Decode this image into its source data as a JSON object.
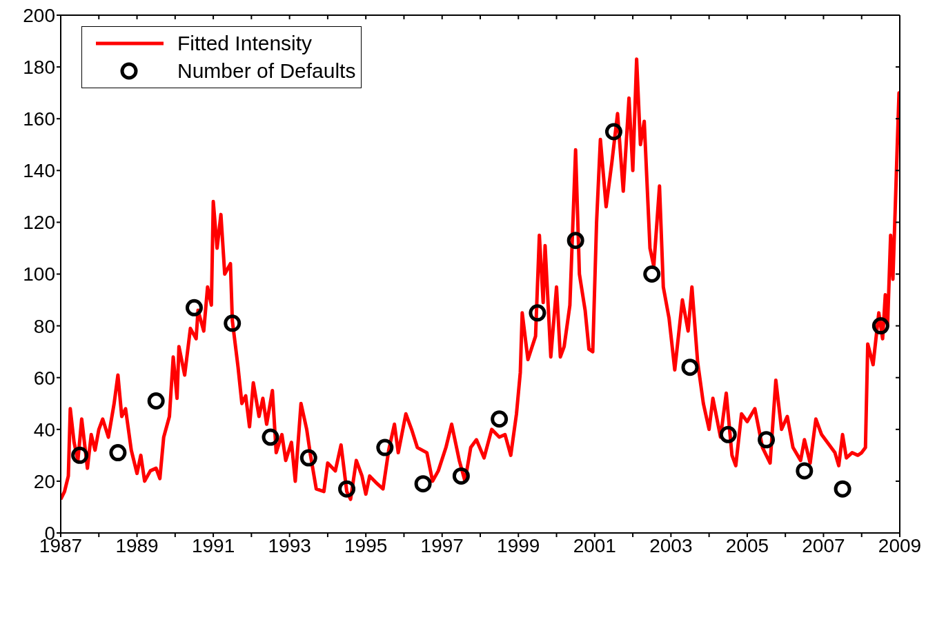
{
  "chart_data": {
    "type": "line",
    "xlim": [
      1987,
      2009
    ],
    "ylim": [
      0,
      200
    ],
    "xticks": [
      1987,
      {
        "value": 1988,
        "label": null
      },
      1989,
      {
        "value": 1990,
        "label": null
      },
      1991,
      {
        "value": 1992,
        "label": null
      },
      1993,
      {
        "value": 1994,
        "label": null
      },
      1995,
      {
        "value": 1996,
        "label": null
      },
      1997,
      {
        "value": 1998,
        "label": null
      },
      1999,
      {
        "value": 2000,
        "label": null
      },
      2001,
      {
        "value": 2002,
        "label": null
      },
      2003,
      {
        "value": 2004,
        "label": null
      },
      2005,
      {
        "value": 2006,
        "label": null
      },
      2007,
      {
        "value": 2008,
        "label": null
      },
      2009
    ],
    "yticks": [
      0,
      20,
      40,
      60,
      80,
      100,
      120,
      140,
      160,
      180,
      200
    ],
    "legend": "top left",
    "series": [
      {
        "name": "Fitted Intensity",
        "color": "#ff0000",
        "line_style": "solid",
        "x": [
          1987.0,
          1987.1,
          1987.2,
          1987.25,
          1987.35,
          1987.45,
          1987.55,
          1987.7,
          1987.8,
          1987.9,
          1988.0,
          1988.1,
          1988.25,
          1988.4,
          1988.5,
          1988.6,
          1988.7,
          1988.85,
          1989.0,
          1989.1,
          1989.2,
          1989.35,
          1989.5,
          1989.6,
          1989.7,
          1989.85,
          1989.95,
          1990.05,
          1990.1,
          1990.25,
          1990.4,
          1990.55,
          1990.6,
          1990.75,
          1990.85,
          1990.95,
          1991.0,
          1991.1,
          1991.2,
          1991.3,
          1991.45,
          1991.5,
          1991.65,
          1991.75,
          1991.85,
          1991.95,
          1992.05,
          1992.2,
          1992.3,
          1992.4,
          1992.55,
          1992.65,
          1992.8,
          1992.9,
          1993.05,
          1993.15,
          1993.3,
          1993.45,
          1993.55,
          1993.7,
          1993.9,
          1994.0,
          1994.2,
          1994.35,
          1994.5,
          1994.6,
          1994.75,
          1994.9,
          1995.0,
          1995.1,
          1995.3,
          1995.45,
          1995.6,
          1995.75,
          1995.85,
          1996.05,
          1996.2,
          1996.35,
          1996.6,
          1996.75,
          1996.9,
          1997.1,
          1997.25,
          1997.45,
          1997.6,
          1997.75,
          1997.9,
          1998.1,
          1998.3,
          1998.5,
          1998.65,
          1998.8,
          1998.95,
          1999.05,
          1999.1,
          1999.25,
          1999.45,
          1999.55,
          1999.65,
          1999.7,
          1999.85,
          2000.0,
          2000.1,
          2000.2,
          2000.35,
          2000.5,
          2000.6,
          2000.75,
          2000.85,
          2000.95,
          2001.05,
          2001.15,
          2001.3,
          2001.45,
          2001.6,
          2001.75,
          2001.9,
          2002.0,
          2002.1,
          2002.2,
          2002.3,
          2002.45,
          2002.55,
          2002.7,
          2002.8,
          2002.95,
          2003.1,
          2003.3,
          2003.45,
          2003.55,
          2003.7,
          2003.85,
          2004.0,
          2004.1,
          2004.3,
          2004.45,
          2004.6,
          2004.7,
          2004.85,
          2005.0,
          2005.2,
          2005.4,
          2005.6,
          2005.75,
          2005.9,
          2006.05,
          2006.2,
          2006.4,
          2006.5,
          2006.65,
          2006.8,
          2006.95,
          2007.1,
          2007.3,
          2007.4,
          2007.5,
          2007.6,
          2007.75,
          2007.9,
          2008.0,
          2008.1,
          2008.16,
          2008.3,
          2008.45,
          2008.55,
          2008.62,
          2008.68,
          2008.76,
          2008.82,
          2008.88,
          2008.93,
          2008.98,
          2009.0
        ],
        "values": [
          13,
          16,
          22,
          48,
          35,
          28,
          44,
          25,
          38,
          32,
          40,
          44,
          37,
          50,
          61,
          45,
          48,
          32,
          23,
          30,
          20,
          24,
          25,
          21,
          37,
          45,
          68,
          52,
          72,
          61,
          79,
          75,
          86,
          78,
          95,
          88,
          128,
          110,
          123,
          100,
          104,
          82,
          64,
          50,
          53,
          41,
          58,
          45,
          52,
          42,
          55,
          31,
          38,
          28,
          35,
          20,
          50,
          40,
          30,
          17,
          16,
          27,
          24,
          34,
          16,
          13,
          28,
          22,
          15,
          22,
          19,
          17,
          32,
          42,
          31,
          46,
          40,
          33,
          31,
          20,
          24,
          33,
          42,
          28,
          20,
          33,
          36,
          29,
          40,
          37,
          38,
          30,
          46,
          62,
          85,
          67,
          76,
          115,
          89,
          111,
          68,
          95,
          68,
          72,
          88,
          148,
          100,
          86,
          71,
          70,
          120,
          152,
          126,
          143,
          162,
          132,
          168,
          140,
          183,
          150,
          159,
          110,
          103,
          134,
          95,
          83,
          63,
          90,
          78,
          95,
          66,
          50,
          40,
          52,
          37,
          54,
          30,
          26,
          46,
          43,
          48,
          33,
          27,
          59,
          40,
          45,
          33,
          28,
          36,
          27,
          44,
          38,
          35,
          31,
          26,
          38,
          29,
          31,
          30,
          31,
          33,
          73,
          65,
          85,
          75,
          92,
          80,
          115,
          98,
          125,
          148,
          170,
          150
        ]
      },
      {
        "name": "Number of Defaults",
        "type": "scatter",
        "color": "#000000",
        "marker": "circle",
        "x": [
          1987.5,
          1988.5,
          1989.5,
          1990.5,
          1991.5,
          1992.5,
          1993.5,
          1994.5,
          1995.5,
          1996.5,
          1997.5,
          1998.5,
          1999.5,
          2000.5,
          2001.5,
          2002.5,
          2003.5,
          2004.5,
          2005.5,
          2006.5,
          2007.5,
          2008.5
        ],
        "values": [
          30,
          31,
          51,
          87,
          81,
          37,
          29,
          17,
          33,
          19,
          22,
          44,
          85,
          113,
          155,
          100,
          64,
          38,
          36,
          24,
          17,
          80
        ]
      }
    ]
  }
}
